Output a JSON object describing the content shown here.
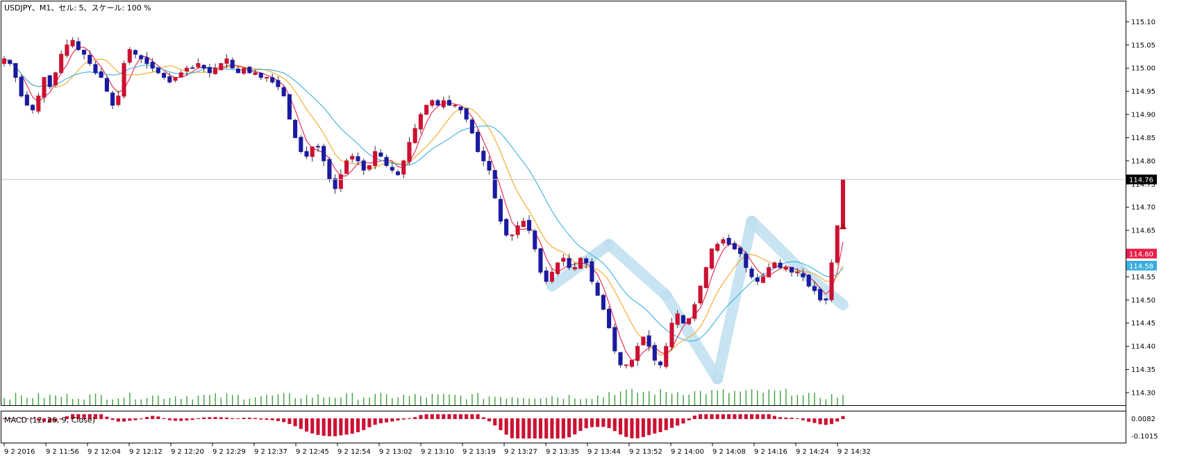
{
  "header": {
    "title": "USDJPY、M1、セル: 5、スケール: 100 %"
  },
  "macd_panel": {
    "title": "MACD (12, 26, 9, Close)"
  },
  "colors": {
    "bull": "#cc1133",
    "bear": "#1a1aa0",
    "volume": "#3aa03a",
    "ma_fast": "#e8204a",
    "ma_mid": "#f5a623",
    "ma_slow": "#3aaee0",
    "pattern": "#bfe0f0",
    "last_price_bg": "#000000",
    "red_tag": "#e8204a",
    "blue_tag": "#3aaee0"
  },
  "chart_data": {
    "type": "candlestick",
    "symbol": "USDJPY",
    "timeframe": "M1",
    "y_ticks": [
      "115.10",
      "115.05",
      "115.00",
      "114.95",
      "114.90",
      "114.85",
      "114.80",
      "114.75",
      "114.70",
      "114.65",
      "114.60",
      "114.55",
      "114.50",
      "114.45",
      "114.40",
      "114.35",
      "114.30"
    ],
    "ylim": [
      114.285,
      115.135
    ],
    "x_tick_labels": [
      "9 2 2016",
      "9 2 11:56",
      "9 2 12:04",
      "9 2 12:12",
      "9 2 12:20",
      "9 2 12:29",
      "9 2 12:37",
      "9 2 12:45",
      "9 2 12:54",
      "9 2 13:02",
      "9 2 13:10",
      "9 2 13:19",
      "9 2 13:27",
      "9 2 13:35",
      "9 2 13:44",
      "9 2 13:52",
      "9 2 14:00",
      "9 2 14:08",
      "9 2 14:16",
      "9 2 14:24",
      "9 2 14:32"
    ],
    "price_labels": {
      "last": "114.76",
      "red_line": "114.60",
      "blue_line": "114.58"
    },
    "macd_labels": {
      "upper": "0.0082",
      "lower": "-0.1015"
    },
    "price_points": [
      115.02,
      115.01,
      114.98,
      114.94,
      114.92,
      114.91,
      114.94,
      114.98,
      114.96,
      114.99,
      115.03,
      115.05,
      115.06,
      115.04,
      115.03,
      115.01,
      114.99,
      114.98,
      114.95,
      114.92,
      114.94,
      115.01,
      115.04,
      115.03,
      115.02,
      115.01,
      115.0,
      114.99,
      114.98,
      114.97,
      114.98,
      114.99,
      115.0,
      115.0,
      115.01,
      115.0,
      114.99,
      115.0,
      115.01,
      115.02,
      115.0,
      114.99,
      115.0,
      114.99,
      114.99,
      114.98,
      114.98,
      114.97,
      114.96,
      114.94,
      114.89,
      114.85,
      114.82,
      114.81,
      114.83,
      114.83,
      114.8,
      114.76,
      114.74,
      114.77,
      114.8,
      114.81,
      114.8,
      114.78,
      114.79,
      114.82,
      114.81,
      114.79,
      114.78,
      114.77,
      114.8,
      114.84,
      114.87,
      114.9,
      114.92,
      114.93,
      114.92,
      114.93,
      114.92,
      114.92,
      114.91,
      114.89,
      114.86,
      114.82,
      114.8,
      114.78,
      114.72,
      114.67,
      114.64,
      114.64,
      114.66,
      114.67,
      114.65,
      114.61,
      114.56,
      114.54,
      114.56,
      114.58,
      114.59,
      114.57,
      114.57,
      114.59,
      114.58,
      114.54,
      114.51,
      114.48,
      114.44,
      114.39,
      114.36,
      114.36,
      114.37,
      114.4,
      114.42,
      114.4,
      114.37,
      114.36,
      114.4,
      114.45,
      114.47,
      114.45,
      114.46,
      114.49,
      114.53,
      114.57,
      114.61,
      114.62,
      114.63,
      114.62,
      114.61,
      114.6,
      114.57,
      114.55,
      114.54,
      114.55,
      114.57,
      114.58,
      114.57,
      114.57,
      114.56,
      114.56,
      114.55,
      114.53,
      114.52,
      114.5,
      114.5,
      114.58,
      114.66,
      114.76
    ],
    "volume_note": "small green volume bars along the bottom of the main panel",
    "series": [
      {
        "name": "",
        "kind": "fast MA (red)"
      },
      {
        "name": "",
        "kind": "mid MA (orange)"
      },
      {
        "name": "",
        "kind": "slow MA (blue)"
      }
    ]
  }
}
